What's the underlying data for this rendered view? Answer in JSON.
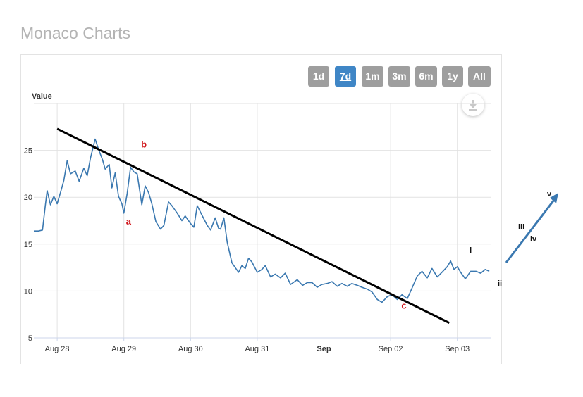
{
  "page": {
    "title": "Monaco Charts"
  },
  "range_selector": {
    "buttons": [
      {
        "label": "1d",
        "active": false
      },
      {
        "label": "7d",
        "active": true
      },
      {
        "label": "1m",
        "active": false
      },
      {
        "label": "3m",
        "active": false
      },
      {
        "label": "6m",
        "active": false
      },
      {
        "label": "1y",
        "active": false
      },
      {
        "label": "All",
        "active": false
      }
    ]
  },
  "download": {
    "icon": "download-icon"
  },
  "colors": {
    "series": "#3a78b0",
    "wave_labels": "#d0161b",
    "button": "#9e9e9e",
    "button_active": "#3f86c6",
    "forecast_arrow": "#3a78b0"
  },
  "chart_data": {
    "type": "line",
    "ylabel": "Value",
    "yticks": [
      5,
      10,
      15,
      20,
      25
    ],
    "ylim": [
      5,
      30
    ],
    "xticks": [
      "Aug 28",
      "Aug 29",
      "Aug 30",
      "Aug 31",
      "Sep",
      "Sep 02",
      "Sep 03"
    ],
    "xtick_days": [
      0,
      1,
      2,
      3,
      4,
      5,
      6
    ],
    "xlim": [
      -0.35,
      6.5
    ],
    "grid": true,
    "series": [
      {
        "x": [
          -0.35,
          -0.28,
          -0.22,
          -0.18,
          -0.15,
          -0.1,
          -0.05,
          0.0,
          0.05,
          0.1,
          0.15,
          0.2,
          0.27,
          0.33,
          0.4,
          0.45,
          0.5,
          0.57,
          0.62,
          0.68,
          0.72,
          0.78,
          0.82,
          0.87,
          0.92,
          0.97,
          1.0,
          1.05,
          1.1,
          1.15,
          1.2,
          1.27,
          1.32,
          1.37,
          1.42,
          1.48,
          1.55,
          1.6,
          1.67,
          1.72,
          1.8,
          1.87,
          1.92,
          2.0,
          2.05,
          2.1,
          2.17,
          2.25,
          2.3,
          2.37,
          2.42,
          2.45,
          2.5,
          2.55,
          2.62,
          2.68,
          2.72,
          2.77,
          2.82,
          2.87,
          2.92,
          3.0,
          3.07,
          3.12,
          3.2,
          3.27,
          3.35,
          3.42,
          3.5,
          3.6,
          3.68,
          3.75,
          3.82,
          3.9,
          3.97,
          4.05,
          4.12,
          4.2,
          4.27,
          4.35,
          4.42,
          4.5,
          4.57,
          4.65,
          4.72,
          4.8,
          4.87,
          4.95,
          5.02,
          5.1,
          5.17,
          5.25,
          5.32,
          5.4,
          5.47,
          5.55,
          5.62,
          5.7,
          5.77,
          5.85,
          5.9,
          5.95,
          6.0,
          6.05,
          6.12,
          6.2,
          6.28,
          6.35,
          6.42,
          6.48
        ],
        "values": [
          16.4,
          16.4,
          16.5,
          19.0,
          20.7,
          19.2,
          20.1,
          19.3,
          20.5,
          21.8,
          23.9,
          22.5,
          22.8,
          21.7,
          23.1,
          22.3,
          24.2,
          26.2,
          25.1,
          24.0,
          23.0,
          23.5,
          21.0,
          22.6,
          20.1,
          19.3,
          18.3,
          20.4,
          23.2,
          22.7,
          22.5,
          19.2,
          21.2,
          20.5,
          19.3,
          17.4,
          16.6,
          17.0,
          19.5,
          19.1,
          18.3,
          17.5,
          18.0,
          17.2,
          16.8,
          19.1,
          18.1,
          17.0,
          16.5,
          17.8,
          16.7,
          16.6,
          17.8,
          15.2,
          13.0,
          12.4,
          12.0,
          12.7,
          12.4,
          13.5,
          13.1,
          12.0,
          12.3,
          12.7,
          11.5,
          11.8,
          11.4,
          11.9,
          10.7,
          11.2,
          10.6,
          10.9,
          10.9,
          10.4,
          10.7,
          10.8,
          11.0,
          10.5,
          10.8,
          10.5,
          10.8,
          10.6,
          10.4,
          10.2,
          9.9,
          9.1,
          8.8,
          9.4,
          9.6,
          9.1,
          9.6,
          9.2,
          10.3,
          11.6,
          12.1,
          11.4,
          12.4,
          11.5,
          12.0,
          12.6,
          13.2,
          12.3,
          12.6,
          12.0,
          11.3,
          12.1,
          12.1,
          11.9,
          12.3,
          12.1
        ]
      }
    ],
    "trendline": {
      "x": [
        0.0,
        5.88
      ],
      "y": [
        27.3,
        6.6
      ]
    },
    "wave_labels": [
      {
        "text": "a",
        "x": 1.07,
        "y": 17.1,
        "style": "red"
      },
      {
        "text": "b",
        "x": 1.3,
        "y": 25.3,
        "style": "red"
      },
      {
        "text": "c",
        "x": 5.2,
        "y": 8.1,
        "style": "red"
      },
      {
        "text": "i",
        "x": 6.2,
        "y": 14.1,
        "style": "black"
      }
    ],
    "forecast_labels": [
      {
        "text": "ii",
        "style": "black"
      },
      {
        "text": "iii",
        "style": "black"
      },
      {
        "text": "iv",
        "style": "black"
      },
      {
        "text": "v",
        "style": "black"
      }
    ]
  }
}
